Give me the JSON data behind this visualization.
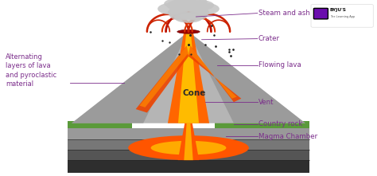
{
  "bg_color": "#ffffff",
  "label_color": "#7b2d8b",
  "cone_label_color": "#2a2a2a",
  "labels": {
    "steam_and_ash": "Steam and ash",
    "crater": "Crater",
    "flowing_lava": "Flowing lava",
    "cone": "Cone",
    "vent": "Vent",
    "country_rock": "Country rock",
    "magma_chamber": "Magma Chamber",
    "alternating": "Alternating\nlayers of lava\nand pyroclastic\nmaterial"
  },
  "cone_gray": "#b8b8b8",
  "cone_dark_gray": "#8a8a8a",
  "cone_stripe_dark": "#7a7a7a",
  "lava_orange": "#ff7700",
  "lava_bright": "#ffaa00",
  "lava_red": "#cc2200",
  "eruption_red": "#cc0000",
  "smoke_gray": "#c8c8c8",
  "smoke_dark": "#a8a8a8",
  "ground_top": "#888888",
  "ground_mid": "#6a6a6a",
  "ground_dark": "#444444",
  "ground_bot": "#333333",
  "green_color": "#5a9a3a",
  "byju_purple": "#6a0dad"
}
